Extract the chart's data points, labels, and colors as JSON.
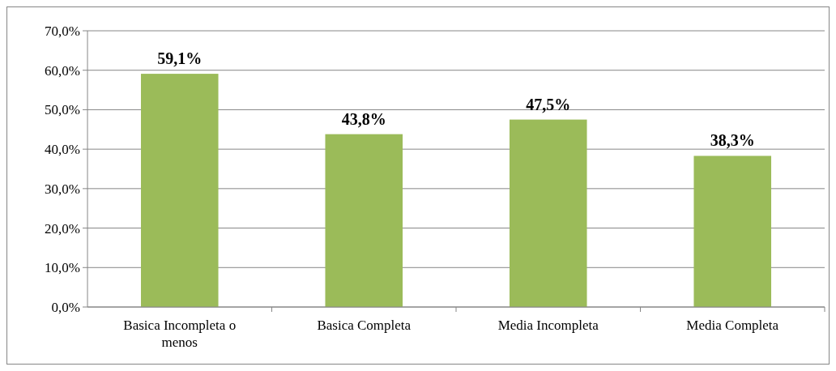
{
  "chart_data": {
    "type": "bar",
    "categories": [
      "Basica Incompleta o menos",
      "Basica Completa",
      "Media Incompleta",
      "Media Completa"
    ],
    "values": [
      59.1,
      43.8,
      47.5,
      38.3
    ],
    "value_labels": [
      "59,1%",
      "43,8%",
      "47,5%",
      "38,3%"
    ],
    "color": "#9bbb59",
    "ylim": [
      0,
      70
    ],
    "yticks": [
      {
        "value": 0,
        "label": "0,0%"
      },
      {
        "value": 10,
        "label": "10,0%"
      },
      {
        "value": 20,
        "label": "20,0%"
      },
      {
        "value": 30,
        "label": "30,0%"
      },
      {
        "value": 40,
        "label": "40,0%"
      },
      {
        "value": 50,
        "label": "50,0%"
      },
      {
        "value": 60,
        "label": "60,0%"
      },
      {
        "value": 70,
        "label": "70,0%"
      }
    ],
    "grid": "y"
  }
}
